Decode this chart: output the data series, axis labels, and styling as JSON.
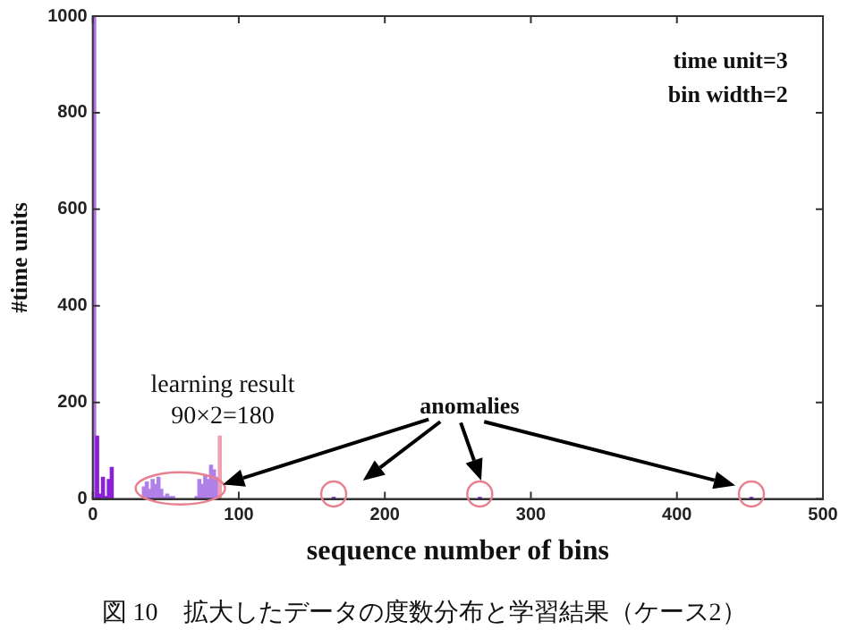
{
  "chart_data": {
    "type": "histogram",
    "xlabel": "sequence number of bins",
    "ylabel": "#time units",
    "bins": [
      0,
      2,
      4,
      6,
      8,
      10,
      12,
      14,
      34,
      36,
      38,
      40,
      42,
      44,
      46,
      48,
      50,
      52,
      54,
      56,
      70,
      72,
      74,
      76,
      78,
      80,
      82,
      84,
      86,
      88,
      164,
      166,
      264,
      266,
      450,
      452
    ],
    "values": [
      1000,
      130,
      10,
      45,
      5,
      40,
      65,
      0,
      25,
      35,
      20,
      40,
      30,
      45,
      20,
      5,
      10,
      5,
      5,
      0,
      5,
      40,
      30,
      50,
      40,
      70,
      60,
      45,
      130,
      0,
      3,
      0,
      3,
      0,
      3
    ],
    "colors": [
      "#b070e0",
      "#8a20d8",
      "#8a20d8",
      "#8a20d8",
      "#8a20d8",
      "#8a20d8",
      "#8a20d8",
      "#8a20d8",
      "#b080e8",
      "#b080e8",
      "#b080e8",
      "#b080e8",
      "#b080e8",
      "#b080e8",
      "#b080e8",
      "#b080e8",
      "#b080e8",
      "#b080e8",
      "#b080e8",
      "#b080e8",
      "#b080e8",
      "#b080e8",
      "#b080e8",
      "#b080e8",
      "#b080e8",
      "#b080e8",
      "#b080e8",
      "#b080e8",
      "#f0a0b0",
      "#8a20d8",
      "#8a20d8",
      "#8a20d8",
      "#8a20d8",
      "#8a20d8",
      "#8a20d8"
    ],
    "xlim": [
      0,
      500
    ],
    "xticks": [
      0,
      100,
      200,
      300,
      400,
      500
    ],
    "ylim": [
      0,
      1000
    ],
    "yticks": [
      0,
      200,
      400,
      600,
      800,
      1000
    ],
    "grid": false,
    "legend": false,
    "annotations": [
      "time unit=3",
      "bin width=2",
      "learning result",
      "90×2=180",
      "anomalies",
      "図 10　拡大したデータの度数分布と学習結果（ケース2）"
    ]
  }
}
